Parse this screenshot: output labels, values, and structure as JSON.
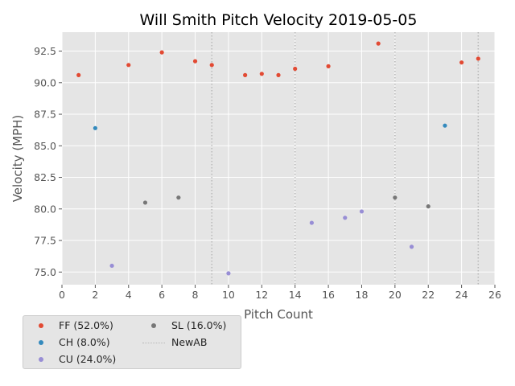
{
  "chart_data": {
    "type": "scatter",
    "title": "Will Smith Pitch Velocity 2019-05-05",
    "xlabel": "Pitch Count",
    "ylabel": "Velocity (MPH)",
    "xlim": [
      0,
      26
    ],
    "ylim": [
      74.0,
      94.0
    ],
    "xticks": [
      "0",
      "2",
      "4",
      "6",
      "8",
      "10",
      "12",
      "14",
      "16",
      "18",
      "20",
      "22",
      "24",
      "26"
    ],
    "yticks": [
      "75.0",
      "77.5",
      "80.0",
      "82.5",
      "85.0",
      "87.5",
      "90.0",
      "92.5"
    ],
    "grid": true,
    "legend_position": "below-left",
    "series": [
      {
        "name": "FF (52.0%)",
        "color": "#e24a33",
        "points": [
          [
            1,
            90.6
          ],
          [
            4,
            91.4
          ],
          [
            6,
            92.4
          ],
          [
            8,
            91.7
          ],
          [
            9,
            91.4
          ],
          [
            11,
            90.6
          ],
          [
            12,
            90.7
          ],
          [
            13,
            90.6
          ],
          [
            14,
            91.1
          ],
          [
            16,
            91.3
          ],
          [
            19,
            93.1
          ],
          [
            24,
            91.6
          ],
          [
            25,
            91.9
          ]
        ]
      },
      {
        "name": "CH (8.0%)",
        "color": "#348abd",
        "points": [
          [
            2,
            86.4
          ],
          [
            23,
            86.6
          ]
        ]
      },
      {
        "name": "CU (24.0%)",
        "color": "#988ed5",
        "points": [
          [
            3,
            75.5
          ],
          [
            10,
            74.9
          ],
          [
            15,
            78.9
          ],
          [
            17,
            79.3
          ],
          [
            18,
            79.8
          ],
          [
            21,
            77.0
          ]
        ]
      },
      {
        "name": "SL (16.0%)",
        "color": "#777777",
        "points": [
          [
            5,
            80.5
          ],
          [
            7,
            80.9
          ],
          [
            20,
            80.9
          ],
          [
            22,
            80.2
          ]
        ]
      }
    ],
    "new_ab": {
      "name": "NewAB",
      "color": "#b8b8b8",
      "x": [
        9,
        14,
        20,
        25
      ]
    }
  }
}
